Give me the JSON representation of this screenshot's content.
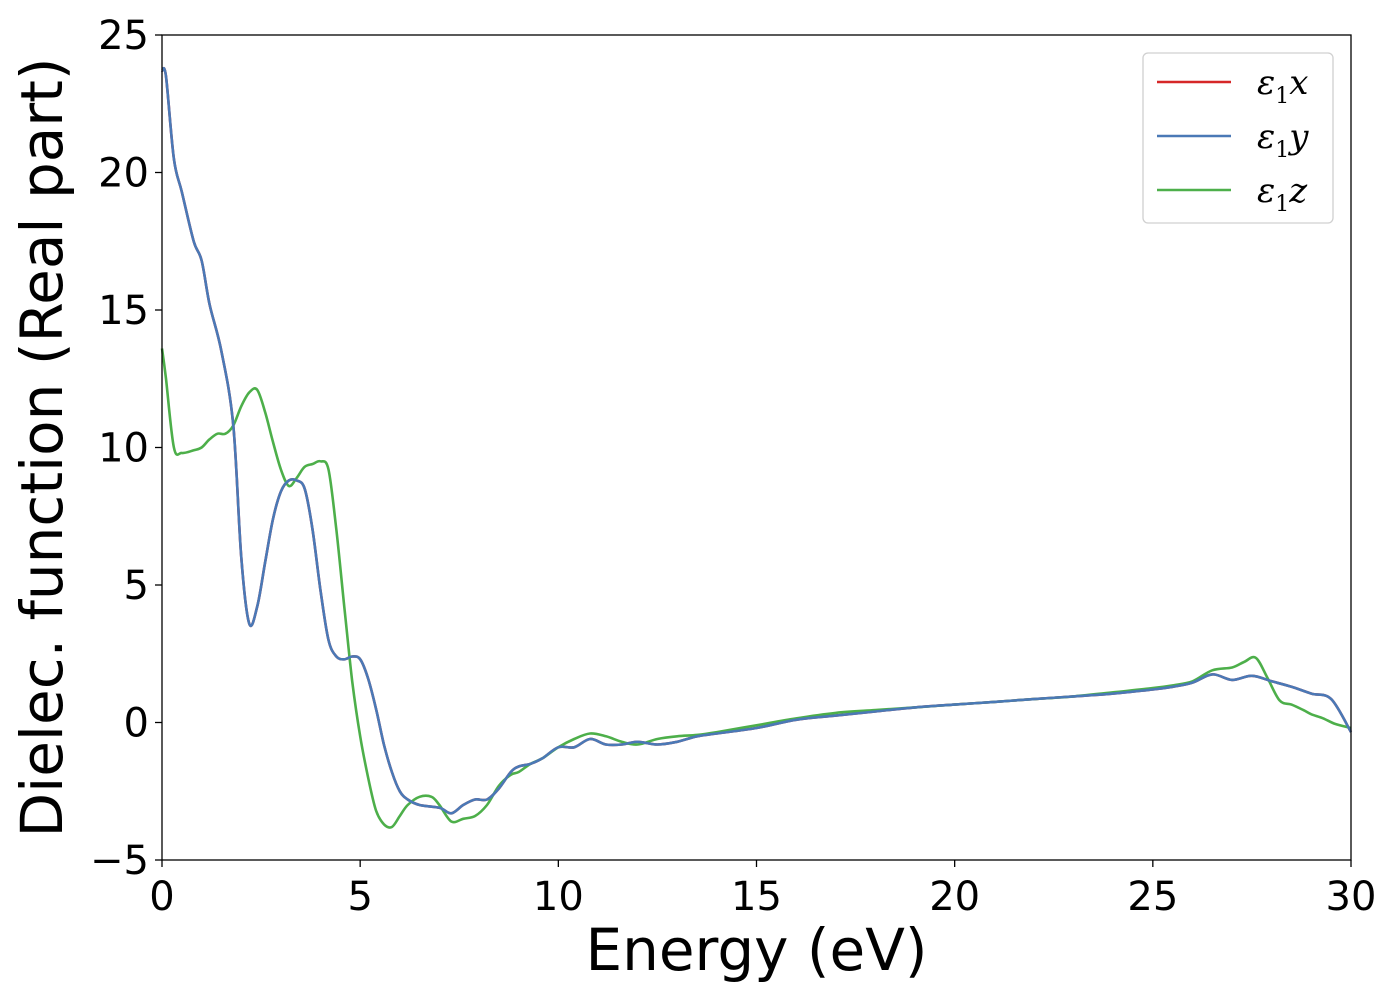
{
  "chart_data": {
    "type": "line",
    "xlabel": "Energy (eV)",
    "ylabel": "Dielec. function (Real part)",
    "xlim": [
      0,
      30
    ],
    "ylim": [
      -5,
      25
    ],
    "xticks": [
      0,
      5,
      10,
      15,
      20,
      25,
      30
    ],
    "xtick_labels": [
      "0",
      "5",
      "10",
      "15",
      "20",
      "25",
      "30"
    ],
    "yticks": [
      -5,
      0,
      5,
      10,
      15,
      20,
      25
    ],
    "ytick_labels": [
      "−5",
      "0",
      "5",
      "10",
      "15",
      "20",
      "25"
    ],
    "grid": false,
    "legend_position": "top-right",
    "series": [
      {
        "name": "ε1x",
        "legend_base": "ε",
        "legend_sub": "1",
        "legend_tail": "x",
        "color": "#d62728",
        "x": [
          0,
          0.1,
          0.3,
          0.5,
          0.8,
          1,
          1.2,
          1.5,
          1.8,
          2,
          2.2,
          2.4,
          2.6,
          2.8,
          3,
          3.2,
          3.4,
          3.6,
          3.8,
          4,
          4.2,
          4.4,
          4.6,
          4.8,
          5,
          5.2,
          5.4,
          5.6,
          5.8,
          6,
          6.2,
          6.5,
          7,
          7.3,
          7.6,
          7.9,
          8.2,
          8.5,
          8.8,
          9,
          9.3,
          9.6,
          10,
          10.4,
          10.8,
          11.2,
          11.6,
          12,
          12.5,
          13,
          13.5,
          14,
          15,
          16,
          17,
          18,
          19,
          20,
          21,
          22,
          23,
          24,
          25,
          25.5,
          26,
          26.5,
          27,
          27.5,
          28,
          28.5,
          29,
          29.5,
          30
        ],
        "values": [
          23.7,
          23.5,
          20.5,
          19.3,
          17.5,
          16.8,
          15.2,
          13.5,
          10.8,
          6.0,
          3.6,
          4.2,
          5.8,
          7.4,
          8.4,
          8.8,
          8.8,
          8.5,
          7.0,
          4.8,
          3.0,
          2.4,
          2.3,
          2.4,
          2.3,
          1.6,
          0.5,
          -0.8,
          -1.8,
          -2.5,
          -2.8,
          -3.0,
          -3.1,
          -3.3,
          -3.0,
          -2.8,
          -2.8,
          -2.4,
          -1.8,
          -1.6,
          -1.5,
          -1.3,
          -0.9,
          -0.9,
          -0.6,
          -0.8,
          -0.8,
          -0.7,
          -0.8,
          -0.7,
          -0.5,
          -0.4,
          -0.2,
          0.1,
          0.25,
          0.4,
          0.55,
          0.65,
          0.75,
          0.85,
          0.95,
          1.05,
          1.2,
          1.3,
          1.45,
          1.75,
          1.55,
          1.7,
          1.5,
          1.3,
          1.05,
          0.85,
          -0.35
        ]
      },
      {
        "name": "ε1y",
        "legend_base": "ε",
        "legend_sub": "1",
        "legend_tail": "y",
        "color": "#4a79b6",
        "x": [
          0,
          0.1,
          0.3,
          0.5,
          0.8,
          1,
          1.2,
          1.5,
          1.8,
          2,
          2.2,
          2.4,
          2.6,
          2.8,
          3,
          3.2,
          3.4,
          3.6,
          3.8,
          4,
          4.2,
          4.4,
          4.6,
          4.8,
          5,
          5.2,
          5.4,
          5.6,
          5.8,
          6,
          6.2,
          6.5,
          7,
          7.3,
          7.6,
          7.9,
          8.2,
          8.5,
          8.8,
          9,
          9.3,
          9.6,
          10,
          10.4,
          10.8,
          11.2,
          11.6,
          12,
          12.5,
          13,
          13.5,
          14,
          15,
          16,
          17,
          18,
          19,
          20,
          21,
          22,
          23,
          24,
          25,
          25.5,
          26,
          26.5,
          27,
          27.5,
          28,
          28.5,
          29,
          29.5,
          30
        ],
        "values": [
          23.7,
          23.5,
          20.5,
          19.3,
          17.5,
          16.8,
          15.2,
          13.5,
          10.8,
          6.0,
          3.6,
          4.2,
          5.8,
          7.4,
          8.4,
          8.8,
          8.8,
          8.5,
          7.0,
          4.8,
          3.0,
          2.4,
          2.3,
          2.4,
          2.3,
          1.6,
          0.5,
          -0.8,
          -1.8,
          -2.5,
          -2.8,
          -3.0,
          -3.1,
          -3.3,
          -3.0,
          -2.8,
          -2.8,
          -2.4,
          -1.8,
          -1.6,
          -1.5,
          -1.3,
          -0.9,
          -0.9,
          -0.6,
          -0.8,
          -0.8,
          -0.7,
          -0.8,
          -0.7,
          -0.5,
          -0.4,
          -0.2,
          0.1,
          0.25,
          0.4,
          0.55,
          0.65,
          0.75,
          0.85,
          0.95,
          1.05,
          1.2,
          1.3,
          1.45,
          1.75,
          1.55,
          1.7,
          1.5,
          1.3,
          1.05,
          0.85,
          -0.35
        ]
      },
      {
        "name": "ε1z",
        "legend_base": "ε",
        "legend_sub": "1",
        "legend_tail": "z",
        "color": "#4daf4a",
        "x": [
          0,
          0.1,
          0.3,
          0.5,
          0.8,
          1,
          1.2,
          1.4,
          1.6,
          1.8,
          2,
          2.2,
          2.4,
          2.6,
          2.8,
          3,
          3.2,
          3.4,
          3.6,
          3.8,
          4,
          4.2,
          4.4,
          4.6,
          4.8,
          5,
          5.2,
          5.4,
          5.6,
          5.8,
          6,
          6.2,
          6.5,
          6.8,
          7,
          7.3,
          7.6,
          7.9,
          8.2,
          8.5,
          8.8,
          9,
          9.3,
          9.6,
          10,
          10.4,
          10.8,
          11.2,
          11.6,
          12,
          12.5,
          13,
          13.5,
          14,
          15,
          16,
          17,
          18,
          19,
          20,
          21,
          22,
          23,
          24,
          25,
          25.5,
          26,
          26.5,
          27,
          27.3,
          27.6,
          27.9,
          28.2,
          28.5,
          28.8,
          29,
          29.3,
          29.6,
          30
        ],
        "values": [
          13.6,
          12.5,
          10.0,
          9.8,
          9.9,
          10.0,
          10.3,
          10.5,
          10.5,
          10.8,
          11.5,
          12.0,
          12.1,
          11.3,
          10.2,
          9.2,
          8.6,
          8.9,
          9.3,
          9.4,
          9.5,
          9.2,
          7.0,
          4.2,
          1.5,
          -0.5,
          -2.0,
          -3.2,
          -3.7,
          -3.8,
          -3.4,
          -3.0,
          -2.7,
          -2.7,
          -3.0,
          -3.6,
          -3.5,
          -3.4,
          -3.0,
          -2.3,
          -1.9,
          -1.8,
          -1.5,
          -1.3,
          -0.9,
          -0.6,
          -0.4,
          -0.5,
          -0.7,
          -0.8,
          -0.6,
          -0.5,
          -0.45,
          -0.35,
          -0.1,
          0.15,
          0.35,
          0.45,
          0.55,
          0.65,
          0.75,
          0.85,
          0.95,
          1.1,
          1.25,
          1.35,
          1.5,
          1.9,
          2.0,
          2.2,
          2.35,
          1.6,
          0.8,
          0.65,
          0.45,
          0.3,
          0.15,
          -0.05,
          -0.2
        ]
      }
    ]
  }
}
